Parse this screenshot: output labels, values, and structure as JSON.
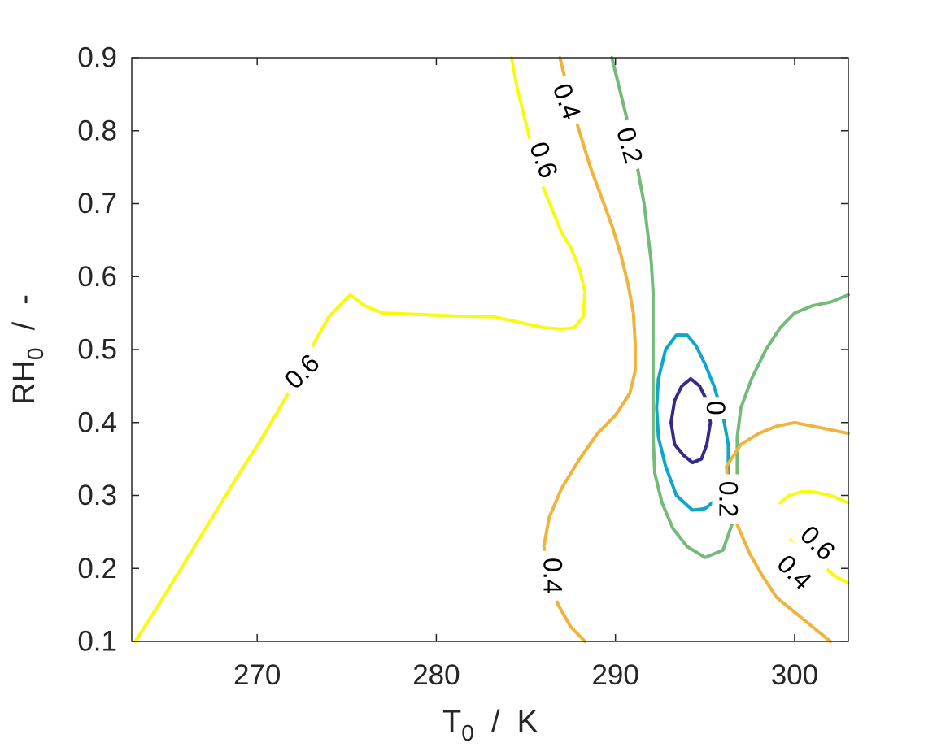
{
  "chart_data": {
    "type": "contour",
    "title": "",
    "xlabel": {
      "main": "T",
      "sub": "0",
      "rest": "  /  K"
    },
    "ylabel": {
      "main": "RH",
      "sub": "0",
      "rest": "  /  -"
    },
    "xlim": [
      263,
      303
    ],
    "ylim": [
      0.1,
      0.9
    ],
    "xticks": [
      270,
      280,
      290,
      300
    ],
    "xtick_labels": [
      "270",
      "280",
      "290",
      "300"
    ],
    "yticks": [
      0.1,
      0.2,
      0.3,
      0.4,
      0.5,
      0.6,
      0.7,
      0.8,
      0.9
    ],
    "ytick_labels": [
      "0.1",
      "0.2",
      "0.3",
      "0.4",
      "0.5",
      "0.6",
      "0.7",
      "0.8",
      "0.9"
    ],
    "grid": false,
    "levels": [
      {
        "value": 0,
        "color": "#352a87"
      },
      {
        "value": 0.1,
        "color": "#0fa6c8"
      },
      {
        "value": 0.2,
        "color": "#74bb7a"
      },
      {
        "value": 0.4,
        "color": "#f0b43d"
      },
      {
        "value": 0.6,
        "color": "#f9fb0e"
      }
    ],
    "contours": [
      {
        "level": 0.6,
        "color": "#f9fb0e",
        "points": [
          [
            263.2,
            0.1
          ],
          [
            264.5,
            0.15
          ],
          [
            266,
            0.21
          ],
          [
            267.5,
            0.27
          ],
          [
            269,
            0.33
          ],
          [
            270.3,
            0.38
          ],
          [
            271.5,
            0.43
          ],
          [
            272.3,
            0.465
          ],
          [
            273.2,
            0.51
          ],
          [
            274,
            0.545
          ],
          [
            275.2,
            0.575
          ],
          [
            276,
            0.56
          ],
          [
            277,
            0.55
          ],
          [
            279,
            0.548
          ],
          [
            281,
            0.546
          ],
          [
            283.2,
            0.545
          ],
          [
            284.5,
            0.538
          ],
          [
            286,
            0.53
          ],
          [
            287,
            0.528
          ],
          [
            287.7,
            0.53
          ],
          [
            288.2,
            0.545
          ],
          [
            288.3,
            0.58
          ],
          [
            288,
            0.61
          ],
          [
            287.5,
            0.64
          ],
          [
            287,
            0.66
          ],
          [
            286.5,
            0.69
          ],
          [
            286,
            0.72
          ],
          [
            285.5,
            0.76
          ],
          [
            285.2,
            0.79
          ],
          [
            284.8,
            0.83
          ],
          [
            284.5,
            0.86
          ],
          [
            284.2,
            0.9
          ]
        ]
      },
      {
        "level": 0.4,
        "color": "#f0b43d",
        "points": [
          [
            288.3,
            0.1
          ],
          [
            287.5,
            0.12
          ],
          [
            286.8,
            0.15
          ],
          [
            286.3,
            0.19
          ],
          [
            286,
            0.23
          ],
          [
            286.3,
            0.27
          ],
          [
            287,
            0.31
          ],
          [
            288,
            0.35
          ],
          [
            289,
            0.385
          ],
          [
            290,
            0.41
          ],
          [
            290.8,
            0.44
          ],
          [
            291.1,
            0.47
          ],
          [
            291.1,
            0.51
          ],
          [
            291,
            0.55
          ],
          [
            290.7,
            0.59
          ],
          [
            290.3,
            0.63
          ],
          [
            289.8,
            0.67
          ],
          [
            289.2,
            0.71
          ],
          [
            288.6,
            0.75
          ],
          [
            288.1,
            0.79
          ],
          [
            287.6,
            0.83
          ],
          [
            287.2,
            0.87
          ],
          [
            286.9,
            0.9
          ]
        ]
      },
      {
        "level": 0.2,
        "color": "#74bb7a",
        "points": [
          [
            289.8,
            0.9
          ],
          [
            290.2,
            0.86
          ],
          [
            290.6,
            0.82
          ],
          [
            291,
            0.78
          ],
          [
            291.3,
            0.74
          ],
          [
            291.6,
            0.7
          ],
          [
            291.8,
            0.66
          ],
          [
            292,
            0.62
          ],
          [
            292.1,
            0.58
          ],
          [
            292.1,
            0.54
          ],
          [
            292.1,
            0.5
          ],
          [
            292.1,
            0.46
          ],
          [
            292.1,
            0.42
          ],
          [
            292.1,
            0.38
          ],
          [
            292.2,
            0.33
          ],
          [
            292.6,
            0.29
          ],
          [
            293.2,
            0.255
          ],
          [
            294,
            0.23
          ],
          [
            295,
            0.215
          ],
          [
            296,
            0.225
          ],
          [
            296.5,
            0.26
          ],
          [
            296.8,
            0.3
          ],
          [
            296.8,
            0.34
          ],
          [
            296.8,
            0.38
          ],
          [
            297,
            0.42
          ],
          [
            297.6,
            0.46
          ],
          [
            298.4,
            0.5
          ],
          [
            299.2,
            0.53
          ],
          [
            300,
            0.55
          ],
          [
            301,
            0.56
          ],
          [
            302,
            0.565
          ],
          [
            303,
            0.575
          ]
        ]
      },
      {
        "level": 0.1,
        "color": "#0fa6c8",
        "points": [
          [
            294.3,
            0.28
          ],
          [
            295,
            0.282
          ],
          [
            295.9,
            0.3
          ],
          [
            296.3,
            0.33
          ],
          [
            296.3,
            0.37
          ],
          [
            296,
            0.41
          ],
          [
            295.5,
            0.45
          ],
          [
            295,
            0.48
          ],
          [
            294.5,
            0.505
          ],
          [
            294,
            0.52
          ],
          [
            293.4,
            0.52
          ],
          [
            292.8,
            0.5
          ],
          [
            292.4,
            0.46
          ],
          [
            292.3,
            0.42
          ],
          [
            292.4,
            0.38
          ],
          [
            292.8,
            0.34
          ],
          [
            293.4,
            0.3
          ],
          [
            294.3,
            0.28
          ]
        ]
      },
      {
        "level": 0,
        "color": "#352a87",
        "points": [
          [
            294.8,
            0.35
          ],
          [
            295.1,
            0.37
          ],
          [
            295.3,
            0.4
          ],
          [
            295.1,
            0.43
          ],
          [
            294.7,
            0.45
          ],
          [
            294.2,
            0.46
          ],
          [
            293.7,
            0.45
          ],
          [
            293.3,
            0.43
          ],
          [
            293.1,
            0.4
          ],
          [
            293.3,
            0.37
          ],
          [
            293.8,
            0.355
          ],
          [
            294.3,
            0.345
          ],
          [
            294.8,
            0.35
          ]
        ]
      },
      {
        "level": 0.4,
        "color": "#f0b43d",
        "points": [
          [
            303,
            0.385
          ],
          [
            302,
            0.39
          ],
          [
            301,
            0.395
          ],
          [
            300,
            0.4
          ],
          [
            299,
            0.395
          ],
          [
            298,
            0.385
          ],
          [
            297,
            0.37
          ],
          [
            296.2,
            0.34
          ],
          [
            296.3,
            0.3
          ],
          [
            296.8,
            0.26
          ],
          [
            297.5,
            0.22
          ],
          [
            298.2,
            0.19
          ],
          [
            299,
            0.16
          ],
          [
            300,
            0.14
          ],
          [
            301,
            0.12
          ],
          [
            302,
            0.1
          ]
        ]
      },
      {
        "level": 0.6,
        "color": "#f9fb0e",
        "points": [
          [
            299.2,
            0.29
          ],
          [
            299.7,
            0.3
          ],
          [
            300.4,
            0.305
          ],
          [
            301,
            0.305
          ],
          [
            302,
            0.3
          ],
          [
            303,
            0.29
          ]
        ]
      },
      {
        "level": 0.6,
        "color": "#f9fb0e",
        "points": [
          [
            299.8,
            0.24
          ],
          [
            300.5,
            0.23
          ],
          [
            301.3,
            0.21
          ],
          [
            302.2,
            0.19
          ],
          [
            303,
            0.18
          ]
        ]
      }
    ],
    "labels": [
      {
        "text": "0.6",
        "x": 272.5,
        "y": 0.47,
        "rotation": -45
      },
      {
        "text": "0.6",
        "x": 286.0,
        "y": 0.76,
        "rotation": 70
      },
      {
        "text": "0.4",
        "x": 287.3,
        "y": 0.84,
        "rotation": 70
      },
      {
        "text": "0.2",
        "x": 290.8,
        "y": 0.78,
        "rotation": 75
      },
      {
        "text": "0",
        "x": 295.6,
        "y": 0.42,
        "rotation": 90
      },
      {
        "text": "0.2",
        "x": 296.3,
        "y": 0.295,
        "rotation": 90
      },
      {
        "text": "0.6",
        "x": 301.3,
        "y": 0.235,
        "rotation": 45
      },
      {
        "text": "0.4",
        "x": 300.0,
        "y": 0.195,
        "rotation": 45
      },
      {
        "text": "0.4",
        "x": 286.5,
        "y": 0.19,
        "rotation": 90
      }
    ]
  }
}
